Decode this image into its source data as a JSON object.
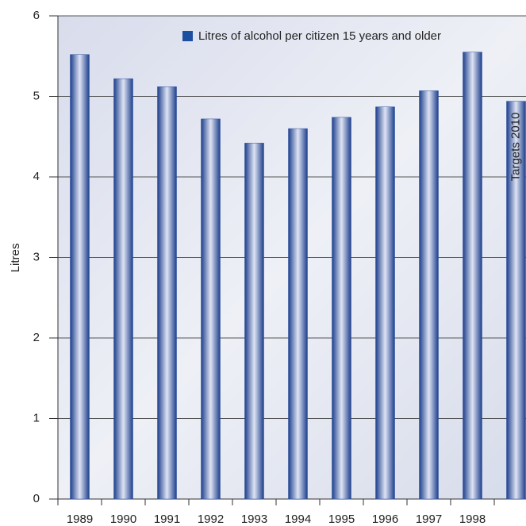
{
  "chart_data": {
    "type": "bar",
    "legend": "Litres of alcohol per citizen 15 years and older",
    "y_label": "Litres",
    "annotation": "Targets 2010",
    "categories": [
      "1989",
      "1990",
      "1991",
      "1992",
      "1993",
      "1994",
      "1995",
      "1996",
      "1997",
      "1998",
      null
    ],
    "values": [
      5.52,
      5.22,
      5.12,
      4.72,
      4.42,
      4.6,
      4.74,
      4.87,
      5.07,
      5.55,
      4.94
    ],
    "color": "#2a4f9e",
    "ylim": [
      0,
      6
    ],
    "yticks": [
      0,
      1,
      2,
      3,
      4,
      5,
      6
    ],
    "grid": true,
    "legend_position": "top-right"
  }
}
